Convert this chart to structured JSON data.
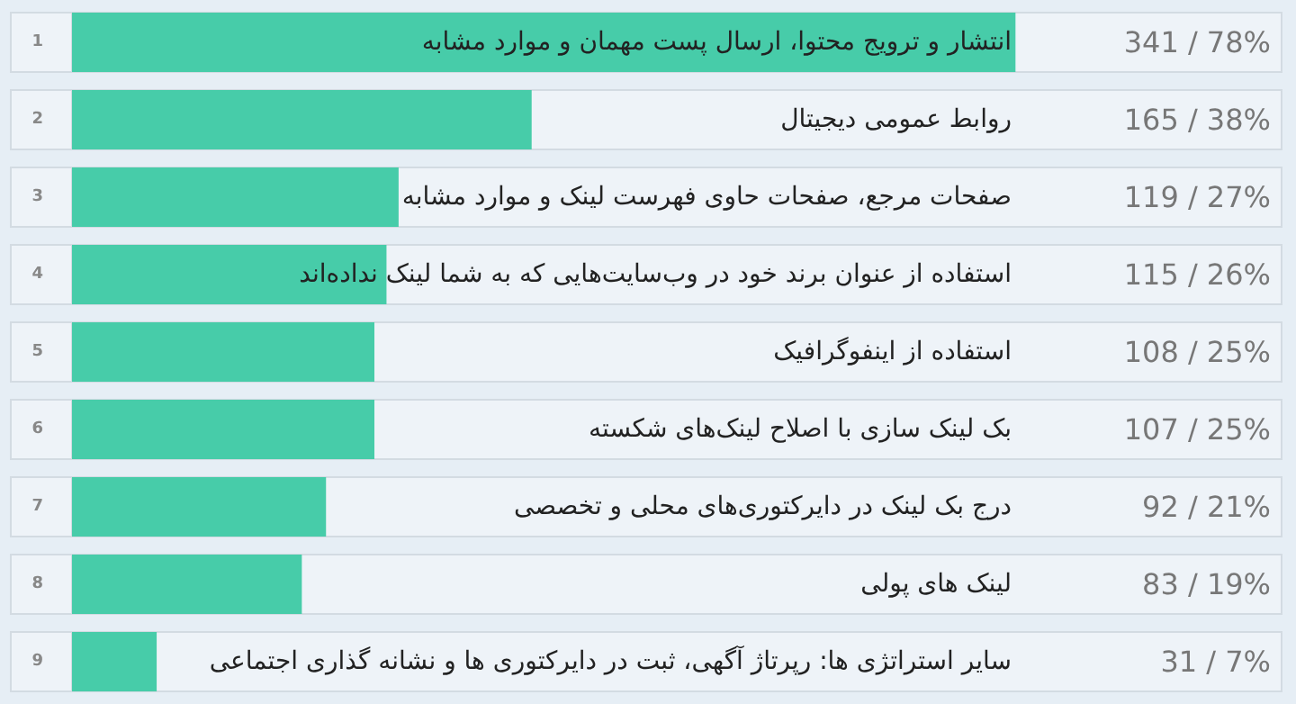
{
  "chart_data": {
    "type": "bar",
    "orientation": "horizontal",
    "categories": [
      "انتشار و ترویج محتوا، ارسال پست مهمان و موارد مشابه",
      "روابط عمومی دیجیتال",
      "صفحات مرجع، صفحات حاوی فهرست لینک و موارد مشابه",
      "استفاده از عنوان برند خود در وب‌سایت‌هایی که به شما لینک نداده‌اند",
      "استفاده از اینفوگرافیک",
      "بک لینک سازی با اصلاح لینک‌های شکسته",
      "درج بک لینک در دایرکتوری‌های محلی و تخصصی",
      "لینک های پولی",
      "سایر استراتژی ها: رپرتاژ آگهی، ثبت در دایرکتوری ها و نشانه گذاری اجتماعی"
    ],
    "values": [
      78,
      38,
      27,
      26,
      25,
      25,
      21,
      19,
      7
    ],
    "value_labels": [
      "341 / 78%",
      "165 / 38%",
      "119 / 27%",
      "115 / 26%",
      "108 / 25%",
      "107 / 25%",
      "92 / 21%",
      "83 / 19%",
      "31 / 7%"
    ],
    "color": "#47cca9",
    "xlim": [
      0,
      100
    ],
    "annotations": [
      "1",
      "2",
      "3",
      "4",
      "5",
      "6",
      "7",
      "8",
      "9"
    ]
  }
}
